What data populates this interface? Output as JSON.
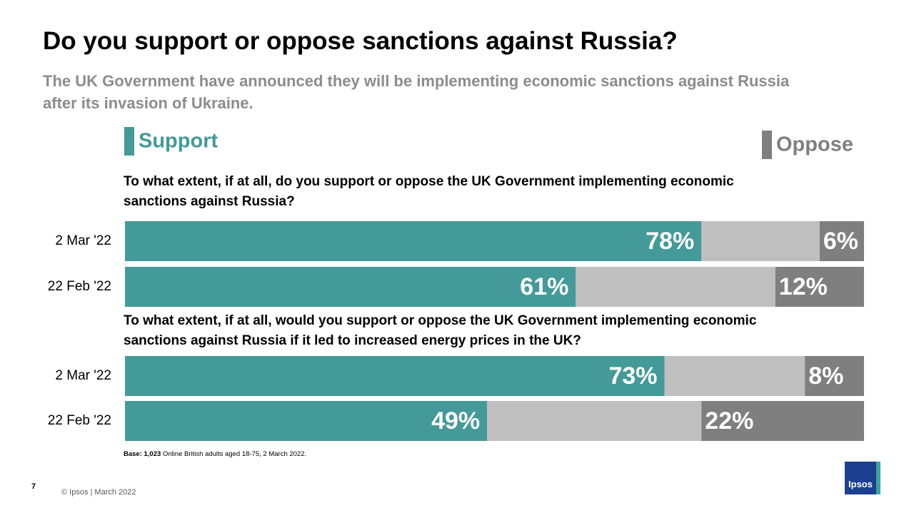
{
  "header": {
    "title": "Do you support or oppose sanctions against Russia?",
    "subtitle": "The UK Government have announced they will be implementing economic sanctions against Russia after its invasion of Ukraine."
  },
  "chart_data": [
    {
      "type": "stacked-bar",
      "orientation": "horizontal",
      "title": "To what extent, if at all, do you support or oppose the UK Government implementing economic sanctions against Russia?",
      "categories": [
        "2 Mar '22",
        "22 Feb '22"
      ],
      "xlim": [
        0,
        100
      ],
      "series": [
        {
          "name": "Support",
          "color": "#439a98",
          "values": [
            78,
            61
          ],
          "value_labels": [
            "78%",
            "61%"
          ]
        },
        {
          "color": "#bfbfbf",
          "values": [
            16,
            27
          ]
        },
        {
          "name": "Oppose",
          "color": "#7f7f7f",
          "values": [
            6,
            12
          ],
          "value_labels": [
            "6%",
            "12%"
          ]
        }
      ]
    },
    {
      "type": "stacked-bar",
      "orientation": "horizontal",
      "title": "To what extent, if at all, would you support or oppose the UK Government implementing economic sanctions against Russia if it led to increased energy prices in the UK?",
      "categories": [
        "2 Mar '22",
        "22 Feb '22"
      ],
      "xlim": [
        0,
        100
      ],
      "series": [
        {
          "color": "#439a98",
          "values": [
            73,
            49
          ],
          "value_labels": [
            "73%",
            "49%"
          ]
        },
        {
          "color": "#bfbfbf",
          "values": [
            19,
            29
          ]
        },
        {
          "color": "#7f7f7f",
          "values": [
            8,
            22
          ],
          "value_labels": [
            "8%",
            "22%"
          ]
        }
      ]
    }
  ],
  "note": {
    "bold": "Base: 1,023",
    "text": "Online British adults aged 18-75, 2 March 2022."
  },
  "footer": {
    "page": "7",
    "text": "© Ipsos | March 2022",
    "logo": "Ipsos"
  }
}
